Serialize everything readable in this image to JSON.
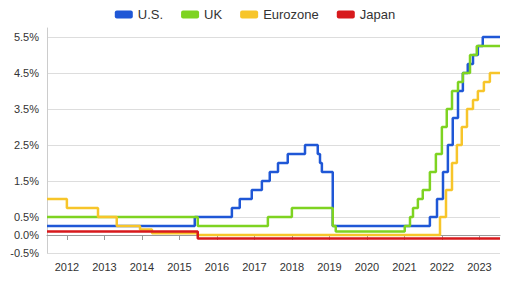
{
  "chart_data": {
    "type": "line",
    "line_style": "step",
    "legend": "top",
    "grid": true,
    "xlim": [
      2011.47,
      2023.55
    ],
    "xticks": [
      2012,
      2013,
      2014,
      2015,
      2016,
      2017,
      2018,
      2019,
      2020,
      2021,
      2022,
      2023
    ],
    "ylim": [
      -0.5,
      5.75
    ],
    "yticks": [
      {
        "value": -0.5,
        "label": "-0.5%"
      },
      {
        "value": 0.0,
        "label": "0.0%"
      },
      {
        "value": 0.5,
        "label": "0.5%"
      },
      {
        "value": 1.5,
        "label": "1.5%"
      },
      {
        "value": 2.5,
        "label": "2.5%"
      },
      {
        "value": 3.5,
        "label": "3.5%"
      },
      {
        "value": 4.5,
        "label": "4.5%"
      },
      {
        "value": 5.5,
        "label": "5.5%"
      }
    ],
    "series": [
      {
        "name": "U.S.",
        "color": "#1f57d6",
        "x": [
          2011.47,
          2015.41,
          2016.4,
          2016.61,
          2016.93,
          2017.2,
          2017.41,
          2017.63,
          2017.89,
          2018.35,
          2018.69,
          2018.75,
          2018.8,
          2019.09,
          2021.68,
          2021.87,
          2022.03,
          2022.16,
          2022.29,
          2022.43,
          2022.56,
          2022.69,
          2022.83,
          2022.96,
          2023.09,
          2023.55
        ],
        "values": [
          0.25,
          0.5,
          0.75,
          1.0,
          1.25,
          1.5,
          1.75,
          2.0,
          2.25,
          2.5,
          2.25,
          2.0,
          1.75,
          0.25,
          0.5,
          1.0,
          1.75,
          2.5,
          3.25,
          4.0,
          4.5,
          4.75,
          5.0,
          5.25,
          5.5,
          5.5
        ]
      },
      {
        "name": "UK",
        "color": "#7ed321",
        "x": [
          2011.47,
          2015.49,
          2017.36,
          2018.0,
          2019.09,
          2019.17,
          2021.01,
          2021.15,
          2021.23,
          2021.36,
          2021.49,
          2021.68,
          2021.84,
          2022.0,
          2022.13,
          2022.27,
          2022.43,
          2022.56,
          2022.75,
          2022.93,
          2023.55
        ],
        "values": [
          0.5,
          0.25,
          0.5,
          0.75,
          0.25,
          0.1,
          0.25,
          0.5,
          0.75,
          1.0,
          1.25,
          1.75,
          2.25,
          3.0,
          3.5,
          4.0,
          4.25,
          4.5,
          5.0,
          5.25,
          5.25
        ]
      },
      {
        "name": "Eurozone",
        "color": "#f7c52a",
        "x": [
          2011.47,
          2012.0,
          2012.83,
          2013.33,
          2013.95,
          2014.27,
          2015.49,
          2021.95,
          2022.11,
          2022.27,
          2022.4,
          2022.53,
          2022.67,
          2022.83,
          2022.96,
          2023.12,
          2023.28,
          2023.55
        ],
        "values": [
          1.0,
          0.75,
          0.5,
          0.25,
          0.15,
          0.05,
          0.0,
          0.5,
          1.25,
          2.0,
          2.5,
          3.0,
          3.5,
          3.75,
          4.0,
          4.25,
          4.5,
          4.5
        ]
      },
      {
        "name": "Japan",
        "color": "#d7191c",
        "x": [
          2011.47,
          2015.49,
          2023.55
        ],
        "values": [
          0.1,
          -0.1,
          -0.1
        ]
      }
    ]
  }
}
